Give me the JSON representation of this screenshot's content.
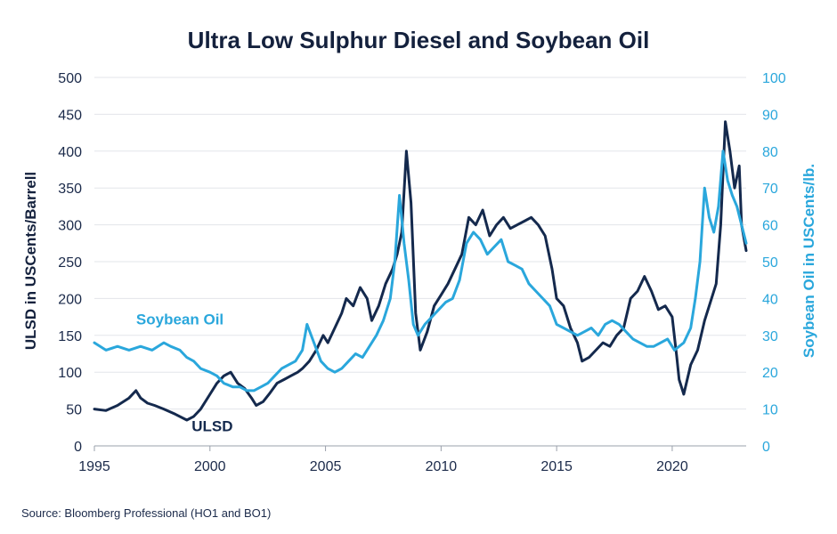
{
  "chart_data": {
    "type": "line",
    "title": "Ultra Low Sulphur Diesel and Soybean Oil",
    "source": "Source: Bloomberg Professional  (HO1 and BO1)",
    "ylabel_left": "ULSD in USCents/Barrell",
    "ylabel_right": "Soybean Oil in USCents/lb.",
    "xlim": [
      1995,
      2023.2
    ],
    "x_ticks": [
      "1995",
      "2000",
      "2005",
      "2010",
      "2015",
      "2020"
    ],
    "ylim_left": [
      0,
      500
    ],
    "y_ticks_left": [
      "0",
      "50",
      "100",
      "150",
      "200",
      "250",
      "300",
      "350",
      "400",
      "450",
      "500"
    ],
    "ylim_right": [
      0,
      100
    ],
    "y_ticks_right": [
      "0",
      "10",
      "20",
      "30",
      "40",
      "50",
      "60",
      "70",
      "80",
      "90",
      "100"
    ],
    "grid": true,
    "colors": {
      "ulsd": "#14294d",
      "soy": "#2aa7dc"
    },
    "series": [
      {
        "name": "ULSD",
        "axis": "left",
        "color": "#14294d",
        "x": [
          1995.0,
          1995.5,
          1996.0,
          1996.5,
          1996.8,
          1997.0,
          1997.3,
          1997.6,
          1998.0,
          1998.5,
          1999.0,
          1999.3,
          1999.6,
          2000.0,
          2000.3,
          2000.6,
          2000.9,
          2001.2,
          2001.5,
          2001.8,
          2002.0,
          2002.3,
          2002.6,
          2002.9,
          2003.2,
          2003.5,
          2003.8,
          2004.0,
          2004.3,
          2004.6,
          2004.9,
          2005.1,
          2005.4,
          2005.7,
          2005.9,
          2006.2,
          2006.5,
          2006.8,
          2007.0,
          2007.3,
          2007.6,
          2007.9,
          2008.1,
          2008.3,
          2008.5,
          2008.7,
          2008.9,
          2009.1,
          2009.4,
          2009.7,
          2010.0,
          2010.3,
          2010.6,
          2010.9,
          2011.2,
          2011.5,
          2011.8,
          2012.1,
          2012.4,
          2012.7,
          2013.0,
          2013.3,
          2013.6,
          2013.9,
          2014.2,
          2014.5,
          2014.8,
          2015.0,
          2015.3,
          2015.6,
          2015.9,
          2016.1,
          2016.4,
          2016.7,
          2017.0,
          2017.3,
          2017.6,
          2017.9,
          2018.2,
          2018.5,
          2018.8,
          2019.1,
          2019.4,
          2019.7,
          2020.0,
          2020.2,
          2020.3,
          2020.5,
          2020.8,
          2021.1,
          2021.4,
          2021.7,
          2021.9,
          2022.1,
          2022.3,
          2022.5,
          2022.7,
          2022.9,
          2023.0,
          2023.2
        ],
        "values": [
          50,
          48,
          55,
          65,
          75,
          65,
          58,
          55,
          50,
          43,
          35,
          40,
          50,
          70,
          85,
          95,
          100,
          85,
          78,
          65,
          55,
          60,
          72,
          85,
          90,
          95,
          100,
          105,
          115,
          130,
          150,
          140,
          160,
          180,
          200,
          190,
          215,
          200,
          170,
          190,
          220,
          240,
          260,
          290,
          400,
          330,
          180,
          130,
          155,
          190,
          205,
          220,
          240,
          260,
          310,
          300,
          320,
          285,
          300,
          310,
          295,
          300,
          305,
          310,
          300,
          285,
          240,
          200,
          190,
          160,
          140,
          115,
          120,
          130,
          140,
          135,
          150,
          160,
          200,
          210,
          230,
          210,
          185,
          190,
          175,
          120,
          90,
          70,
          110,
          130,
          170,
          200,
          220,
          300,
          440,
          400,
          350,
          380,
          300,
          265
        ]
      },
      {
        "name": "Soybean Oil",
        "axis": "right",
        "color": "#2aa7dc",
        "x": [
          1995.0,
          1995.5,
          1996.0,
          1996.5,
          1997.0,
          1997.5,
          1998.0,
          1998.3,
          1998.7,
          1999.0,
          1999.3,
          1999.6,
          2000.0,
          2000.3,
          2000.6,
          2001.0,
          2001.3,
          2001.6,
          2001.9,
          2002.2,
          2002.5,
          2002.8,
          2003.1,
          2003.4,
          2003.7,
          2004.0,
          2004.2,
          2004.5,
          2004.8,
          2005.1,
          2005.4,
          2005.7,
          2006.0,
          2006.3,
          2006.6,
          2006.9,
          2007.2,
          2007.5,
          2007.8,
          2008.0,
          2008.2,
          2008.4,
          2008.6,
          2008.8,
          2009.0,
          2009.3,
          2009.6,
          2009.9,
          2010.2,
          2010.5,
          2010.8,
          2011.1,
          2011.4,
          2011.7,
          2012.0,
          2012.3,
          2012.6,
          2012.9,
          2013.2,
          2013.5,
          2013.8,
          2014.1,
          2014.4,
          2014.7,
          2015.0,
          2015.3,
          2015.6,
          2015.9,
          2016.2,
          2016.5,
          2016.8,
          2017.1,
          2017.4,
          2017.7,
          2018.0,
          2018.3,
          2018.6,
          2018.9,
          2019.2,
          2019.5,
          2019.8,
          2020.1,
          2020.3,
          2020.5,
          2020.8,
          2021.0,
          2021.2,
          2021.4,
          2021.6,
          2021.8,
          2022.0,
          2022.2,
          2022.4,
          2022.6,
          2022.8,
          2023.0,
          2023.2
        ],
        "values": [
          28,
          26,
          27,
          26,
          27,
          26,
          28,
          27,
          26,
          24,
          23,
          21,
          20,
          19,
          17,
          16,
          16,
          15,
          15,
          16,
          17,
          19,
          21,
          22,
          23,
          26,
          33,
          28,
          23,
          21,
          20,
          21,
          23,
          25,
          24,
          27,
          30,
          34,
          40,
          50,
          68,
          55,
          45,
          33,
          30,
          33,
          35,
          37,
          39,
          40,
          45,
          55,
          58,
          56,
          52,
          54,
          56,
          50,
          49,
          48,
          44,
          42,
          40,
          38,
          33,
          32,
          31,
          30,
          31,
          32,
          30,
          33,
          34,
          33,
          31,
          29,
          28,
          27,
          27,
          28,
          29,
          26,
          27,
          28,
          32,
          40,
          50,
          70,
          62,
          58,
          65,
          80,
          72,
          68,
          65,
          60,
          55
        ]
      }
    ],
    "annotations": [
      {
        "text": "Soybean Oil",
        "x": 1998.7,
        "y": 165,
        "axis": "left",
        "color": "#2aa7dc"
      },
      {
        "text": "ULSD",
        "x": 2000.1,
        "y": 20,
        "axis": "left",
        "color": "#14294d"
      }
    ]
  }
}
